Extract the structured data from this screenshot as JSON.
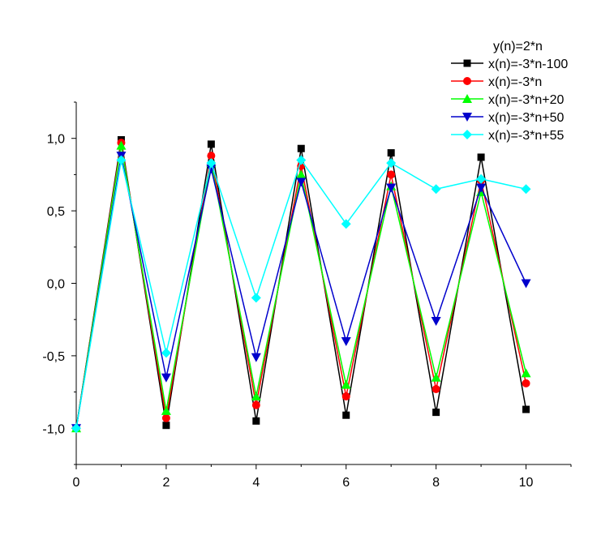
{
  "chart_data": {
    "type": "line",
    "legend_title": "y(n)=2*n",
    "legend_position": "top-right",
    "x": [
      0,
      1,
      2,
      3,
      4,
      5,
      6,
      7,
      8,
      9,
      10
    ],
    "xlim": [
      0,
      11
    ],
    "ylim": [
      -1.25,
      1.25
    ],
    "xticks": [
      0,
      2,
      4,
      6,
      8,
      10
    ],
    "xtick_labels": [
      "0",
      "2",
      "4",
      "6",
      "8",
      "10"
    ],
    "yticks": [
      1.0,
      0.5,
      0.0,
      -0.5,
      -1.0
    ],
    "ytick_labels": [
      "1,0",
      "0,5",
      "0,0",
      "-0,5",
      "-1,0"
    ],
    "grid": false,
    "series": [
      {
        "name": "x(n)=-3*n-100",
        "color": "#000000",
        "marker": "square",
        "values": [
          -1.0,
          0.99,
          -0.98,
          0.96,
          -0.95,
          0.93,
          -0.91,
          0.9,
          -0.89,
          0.87,
          -0.87
        ]
      },
      {
        "name": "x(n)=-3*n",
        "color": "#ff0000",
        "marker": "circle",
        "values": [
          -1.0,
          0.97,
          -0.93,
          0.88,
          -0.84,
          0.81,
          -0.78,
          0.75,
          -0.73,
          0.71,
          -0.69
        ]
      },
      {
        "name": "x(n)=-3*n+20",
        "color": "#00ff00",
        "marker": "triangle-up",
        "values": [
          -1.0,
          0.95,
          -0.88,
          0.83,
          -0.78,
          0.75,
          -0.7,
          0.67,
          -0.65,
          0.63,
          -0.62
        ]
      },
      {
        "name": "x(n)=-3*n+50",
        "color": "#0000cc",
        "marker": "triangle-down",
        "values": [
          -1.0,
          0.88,
          -0.65,
          0.79,
          -0.51,
          0.7,
          -0.4,
          0.66,
          -0.26,
          0.66,
          0.0
        ]
      },
      {
        "name": "x(n)=-3*n+55",
        "color": "#00ffff",
        "marker": "diamond",
        "values": [
          -1.0,
          0.85,
          -0.48,
          0.83,
          -0.1,
          0.85,
          0.41,
          0.83,
          0.65,
          0.72,
          0.65
        ]
      }
    ]
  }
}
